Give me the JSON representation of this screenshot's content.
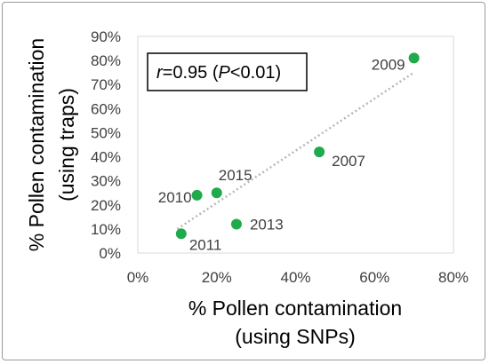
{
  "chart_data": {
    "type": "scatter",
    "xlabel_line1": "% Pollen contamination",
    "xlabel_line2": "(using SNPs)",
    "ylabel_line1": "% Pollen contamination",
    "ylabel_line2": "(using traps)",
    "xlim": [
      0,
      80
    ],
    "ylim": [
      0,
      90
    ],
    "x_ticks": [
      0,
      20,
      40,
      60,
      80
    ],
    "x_tick_labels": [
      "0%",
      "20%",
      "40%",
      "60%",
      "80%"
    ],
    "y_ticks": [
      0,
      10,
      20,
      30,
      40,
      50,
      60,
      70,
      80,
      90
    ],
    "y_tick_labels": [
      "0%",
      "10%",
      "20%",
      "30%",
      "40%",
      "50%",
      "60%",
      "70%",
      "80%",
      "90%"
    ],
    "grid": false,
    "marker_color": "#1faa4b",
    "trendline_color": "#b8b8b8",
    "points": [
      {
        "label": "2009",
        "x": 70,
        "y": 81
      },
      {
        "label": "2007",
        "x": 46,
        "y": 42
      },
      {
        "label": "2015",
        "x": 20,
        "y": 25
      },
      {
        "label": "2010",
        "x": 15,
        "y": 24
      },
      {
        "label": "2013",
        "x": 25,
        "y": 12
      },
      {
        "label": "2011",
        "x": 11,
        "y": 8
      }
    ],
    "trendline": {
      "x": [
        10,
        70
      ],
      "y_start": 10,
      "y_end": 75
    },
    "annotation": {
      "r_symbol": "r",
      "r_text": "=0.95 (",
      "p_symbol": "P",
      "p_text": "<0.01)"
    }
  }
}
